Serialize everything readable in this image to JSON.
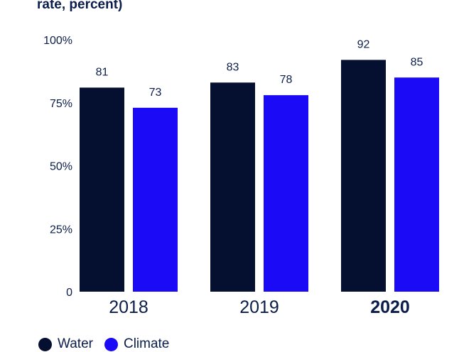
{
  "chart_data": {
    "type": "bar",
    "title": "rate, percent)",
    "categories": [
      "2018",
      "2019",
      "2020"
    ],
    "highlight_category": "2020",
    "series": [
      {
        "name": "Water",
        "values": [
          81,
          83,
          92
        ],
        "color": "#050f30"
      },
      {
        "name": "Climate",
        "values": [
          73,
          78,
          85
        ],
        "color": "#1a0af5"
      }
    ],
    "ylim": [
      0,
      100
    ],
    "yticks": [
      {
        "value": 0,
        "label": "0"
      },
      {
        "value": 25,
        "label": "25%"
      },
      {
        "value": 50,
        "label": "50%"
      },
      {
        "value": 75,
        "label": "75%"
      },
      {
        "value": 100,
        "label": "100%"
      }
    ],
    "xlabel": "",
    "ylabel": "",
    "grid": false,
    "legend_position": "bottom-left"
  }
}
